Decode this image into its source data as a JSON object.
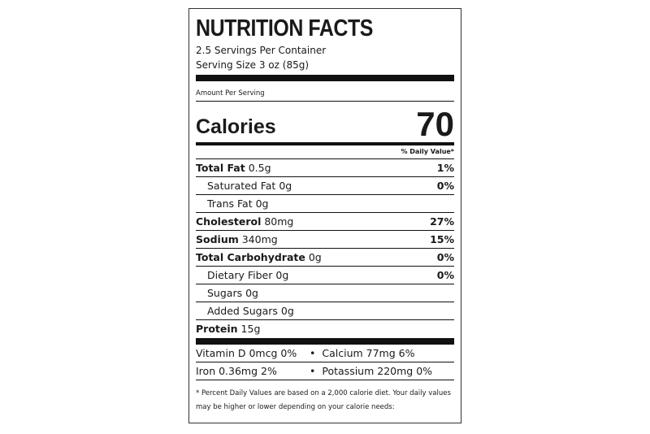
{
  "header": {
    "title": "NUTRITION FACTS",
    "servings": "2.5 Servings Per Container",
    "serving_size": "Serving Size 3 oz (85g)"
  },
  "amount_per_serving": "Amount Per Serving",
  "calories": {
    "label": "Calories",
    "value": "70"
  },
  "daily_value_header": "% Daily Value*",
  "nutrients": [
    {
      "name": "Total Fat",
      "amount": "0.5g",
      "dv": "1%"
    },
    {
      "name": "Saturated Fat",
      "amount": "0g",
      "dv": "0%"
    },
    {
      "name": "Trans Fat",
      "amount": "0g"
    },
    {
      "name": "Cholesterol",
      "amount": "80mg",
      "dv": "27%"
    },
    {
      "name": "Sodium",
      "amount": "340mg",
      "dv": "15%"
    },
    {
      "name": "Total Carbohydrate",
      "amount": "0g",
      "dv": "0%"
    },
    {
      "name": "Dietary Fiber",
      "amount": "0g",
      "dv": "0%"
    },
    {
      "name": "Sugars",
      "amount": "0g"
    },
    {
      "name": "Added Sugars",
      "amount": "0g"
    },
    {
      "name": "Protein",
      "amount": "15g"
    }
  ],
  "vitamins": [
    [
      "Vitamin D 0mcg 0%",
      "Calcium 77mg 6%"
    ],
    [
      "Iron 0.36mg 2%",
      "Potassium 220mg 0%"
    ]
  ],
  "footnote": "* Percent Daily Values are based on a 2,000 calorie diet. Your daily values may be higher or lower depending on your calorie needs:"
}
